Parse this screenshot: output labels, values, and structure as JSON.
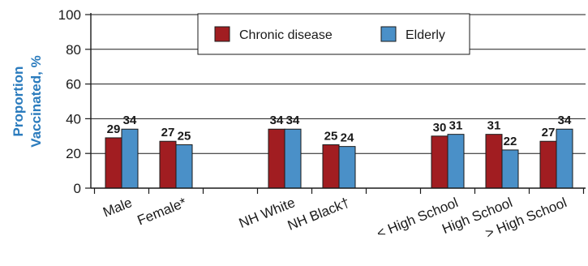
{
  "chart_data": {
    "type": "bar",
    "title": "",
    "xlabel": "",
    "ylabel_lines": [
      "Proportion",
      "Vaccinated, %"
    ],
    "ylim": [
      0,
      100
    ],
    "yticks": [
      "0",
      "20",
      "40",
      "60",
      "80",
      "100"
    ],
    "grid": "horizontal",
    "legend_position": "top-center",
    "categories": [
      "Male",
      "Female*",
      "NH White",
      "NH Black†",
      "< High School",
      "High School",
      "> High School"
    ],
    "series": [
      {
        "name": "Chronic disease",
        "color": "#a11d21",
        "values": [
          29,
          27,
          34,
          25,
          30,
          31,
          27
        ]
      },
      {
        "name": "Elderly",
        "color": "#4a90c8",
        "values": [
          34,
          25,
          34,
          24,
          31,
          22,
          34
        ]
      }
    ],
    "value_labels": [
      [
        "29",
        "27",
        "34",
        "25",
        "30",
        "31",
        "27"
      ],
      [
        "34",
        "25",
        "34",
        "24",
        "31",
        "22",
        "34"
      ]
    ]
  }
}
